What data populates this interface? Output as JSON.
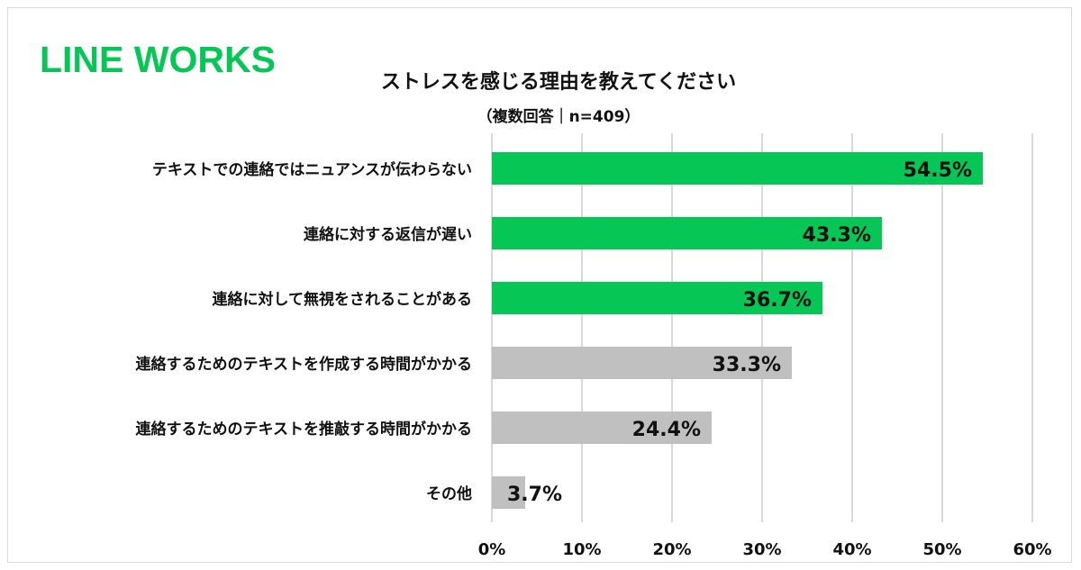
{
  "logo": {
    "text": "LINE WORKS",
    "color": "#06c755"
  },
  "chart_data": {
    "type": "bar",
    "orientation": "horizontal",
    "title": "ストレスを感じる理由を教えてください",
    "subtitle": "（複数回答｜n=409）",
    "categories": [
      "テキストでの連絡ではニュアンスが伝わらない",
      "連絡に対する返信が遅い",
      "連絡に対して無視をされることがある",
      "連絡するためのテキストを作成する時間がかかる",
      "連絡するためのテキストを推敲する時間がかかる",
      "その他"
    ],
    "values": [
      54.5,
      43.3,
      36.7,
      33.3,
      24.4,
      3.7
    ],
    "value_labels": [
      "54.5%",
      "43.3%",
      "36.7%",
      "33.3%",
      "24.4%",
      "3.7%"
    ],
    "highlighted": [
      true,
      true,
      true,
      false,
      false,
      false
    ],
    "xlim": [
      0,
      60
    ],
    "x_ticks": [
      "0%",
      "10%",
      "20%",
      "30%",
      "40%",
      "50%",
      "60%"
    ],
    "grid": true,
    "colors": {
      "highlight": "#06c755",
      "other": "#c0c0c0",
      "grid": "#d9d9d9"
    }
  }
}
